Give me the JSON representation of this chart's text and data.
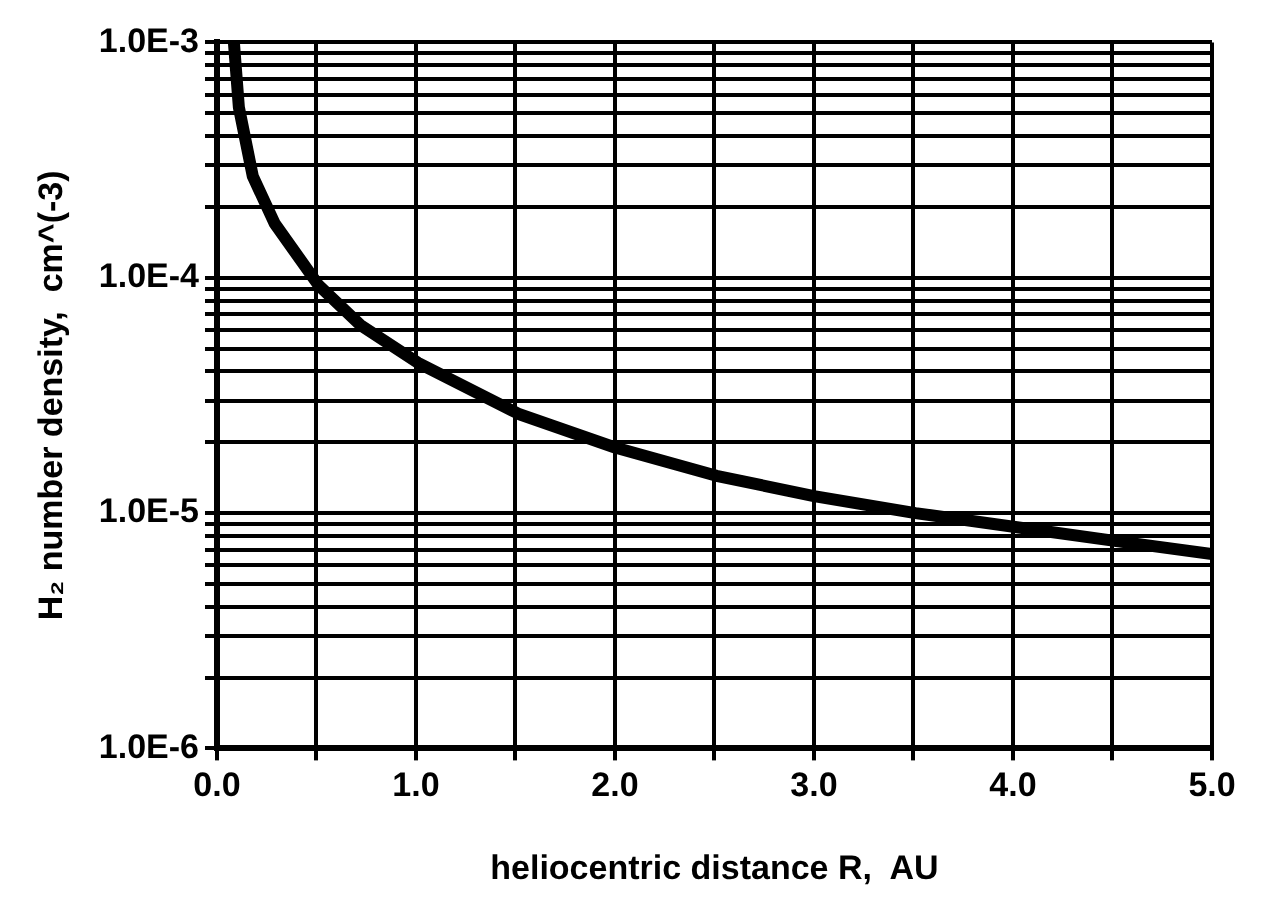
{
  "chart_data": {
    "type": "line",
    "xlabel": "heliocentric distance R,  AU",
    "ylabel": "H₂ number density,  cm^(-3)",
    "x": [
      0.085,
      0.11,
      0.18,
      0.29,
      0.51,
      0.72,
      1.01,
      1.52,
      2.0,
      2.51,
      3.0,
      3.51,
      4.02,
      4.52,
      5.0
    ],
    "series": [
      {
        "color": "#000000",
        "values": [
          0.001,
          0.00053,
          0.00027,
          0.00017,
          9.3e-05,
          6.3e-05,
          4.35e-05,
          2.63e-05,
          1.9e-05,
          1.44e-05,
          1.18e-05,
          1e-05,
          8.7e-06,
          7.6e-06,
          6.7e-06
        ]
      }
    ],
    "xlim": [
      0,
      5
    ],
    "xticks": [
      {
        "value": 0,
        "label": "0.0"
      },
      {
        "value": 0.5,
        "label": null
      },
      {
        "value": 1,
        "label": "1.0"
      },
      {
        "value": 1.5,
        "label": null
      },
      {
        "value": 2,
        "label": "2.0"
      },
      {
        "value": 2.5,
        "label": null
      },
      {
        "value": 3,
        "label": "3.0"
      },
      {
        "value": 3.5,
        "label": null
      },
      {
        "value": 4,
        "label": "4.0"
      },
      {
        "value": 4.5,
        "label": null
      },
      {
        "value": 5,
        "label": "5.0"
      }
    ],
    "ylim": [
      1e-06,
      0.001
    ],
    "yticks": [
      {
        "value": 1e-06,
        "label": "1.0E-6"
      },
      {
        "value": 2e-06,
        "label": null
      },
      {
        "value": 3e-06,
        "label": null
      },
      {
        "value": 4e-06,
        "label": null
      },
      {
        "value": 5e-06,
        "label": null
      },
      {
        "value": 6e-06,
        "label": null
      },
      {
        "value": 7e-06,
        "label": null
      },
      {
        "value": 8e-06,
        "label": null
      },
      {
        "value": 9e-06,
        "label": null
      },
      {
        "value": 1e-05,
        "label": "1.0E-5"
      },
      {
        "value": 2e-05,
        "label": null
      },
      {
        "value": 3e-05,
        "label": null
      },
      {
        "value": 4e-05,
        "label": null
      },
      {
        "value": 5e-05,
        "label": null
      },
      {
        "value": 6e-05,
        "label": null
      },
      {
        "value": 7e-05,
        "label": null
      },
      {
        "value": 8e-05,
        "label": null
      },
      {
        "value": 9e-05,
        "label": null
      },
      {
        "value": 0.0001,
        "label": "1.0E-4"
      },
      {
        "value": 0.0002,
        "label": null
      },
      {
        "value": 0.0003,
        "label": null
      },
      {
        "value": 0.0004,
        "label": null
      },
      {
        "value": 0.0005,
        "label": null
      },
      {
        "value": 0.0006,
        "label": null
      },
      {
        "value": 0.0007,
        "label": null
      },
      {
        "value": 0.0008,
        "label": null
      },
      {
        "value": 0.0009,
        "label": null
      },
      {
        "value": 0.001,
        "label": "1.0E-3"
      }
    ],
    "log": "y",
    "grid": true,
    "legend": false,
    "marker": "none",
    "line_style": "solid"
  }
}
